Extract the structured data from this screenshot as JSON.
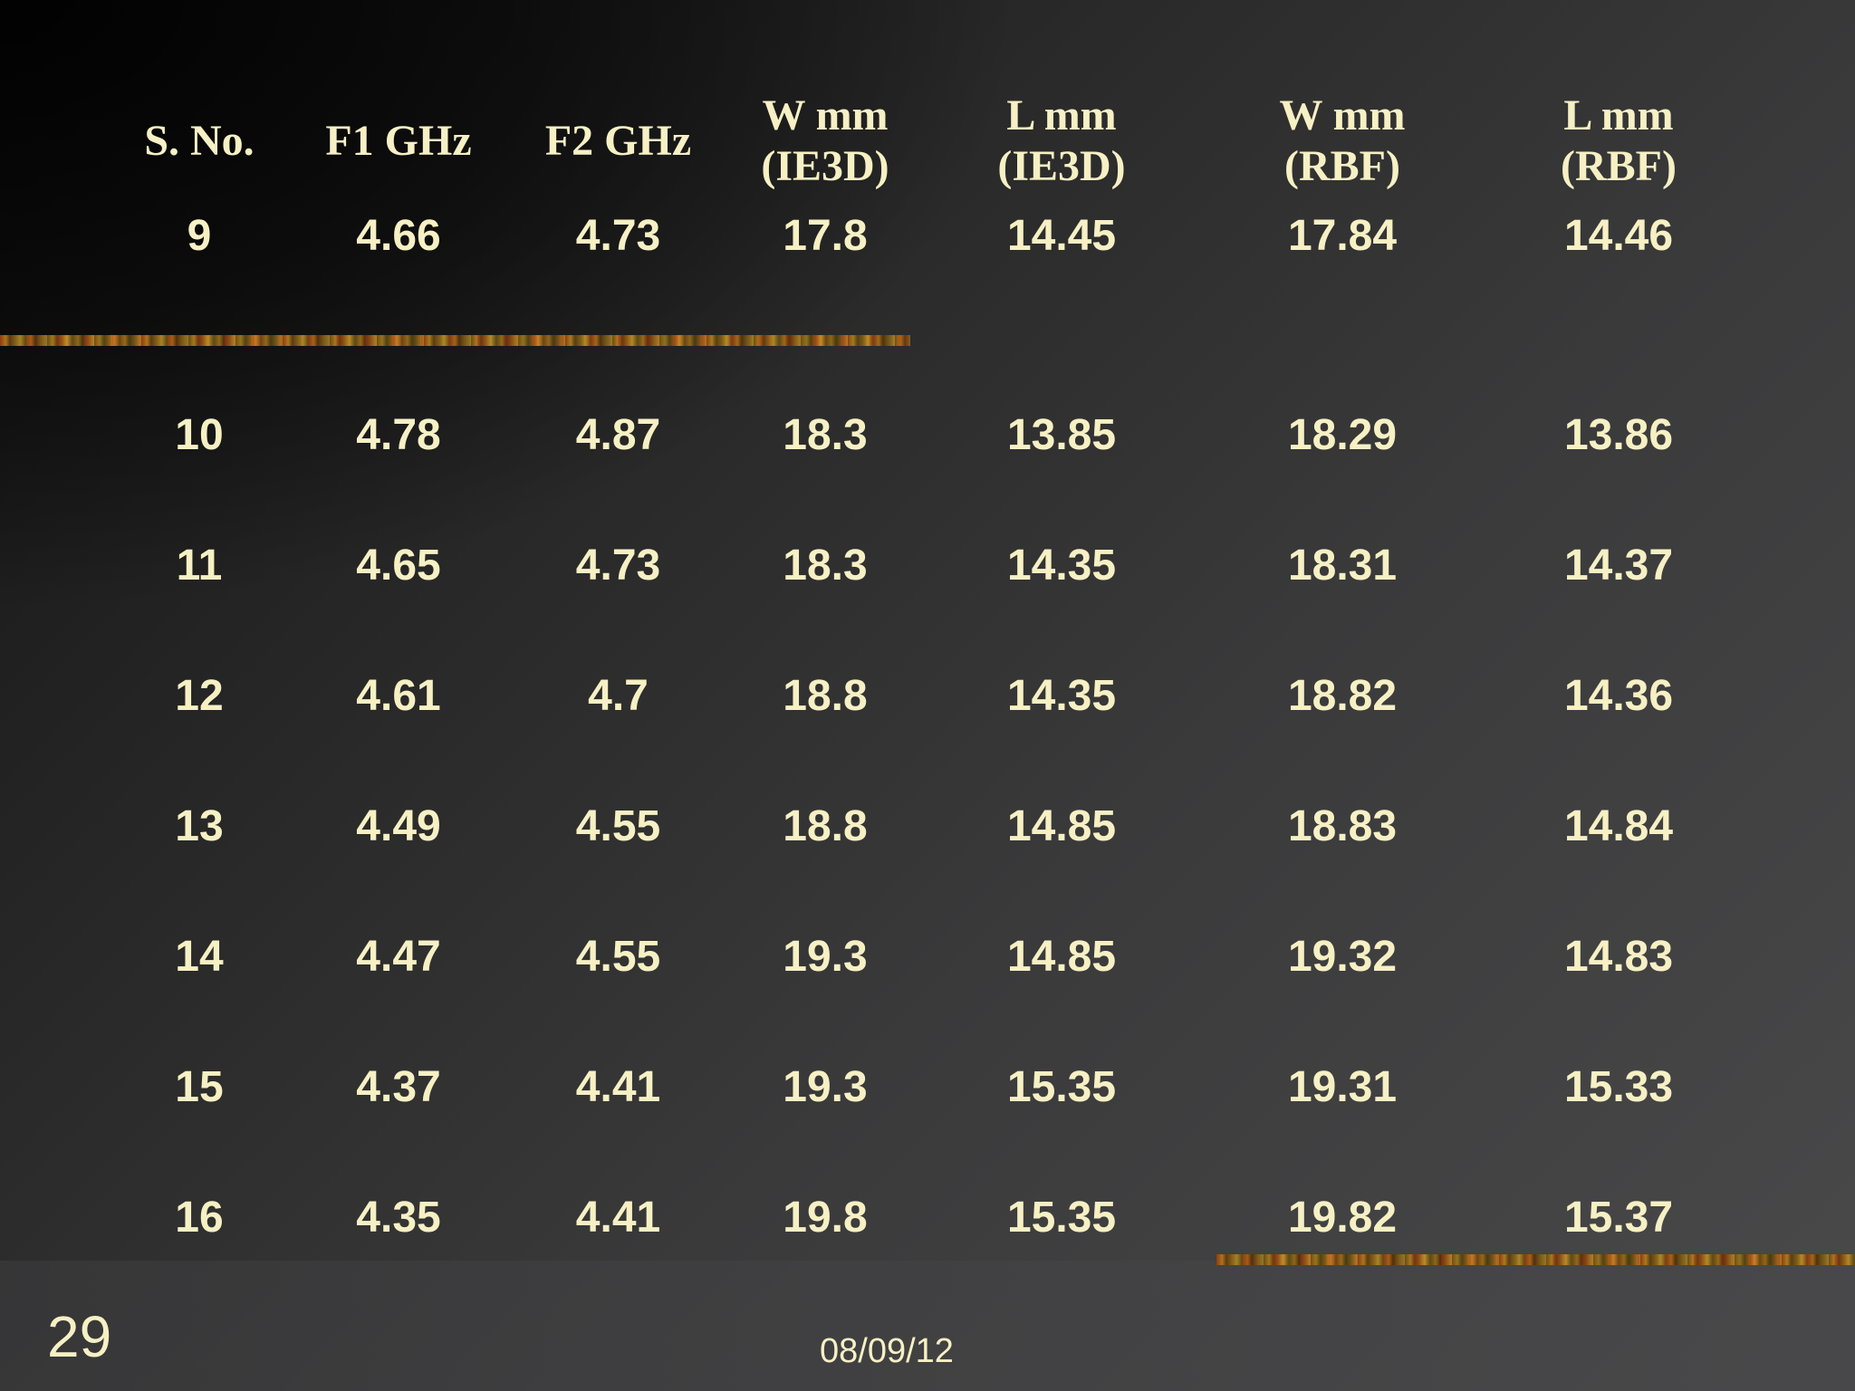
{
  "table": {
    "headers": [
      [
        "S. No."
      ],
      [
        "F1 GHz"
      ],
      [
        "F2 GHz"
      ],
      [
        "W mm",
        "(IE3D)"
      ],
      [
        "L mm",
        "(IE3D)"
      ],
      [
        "W mm",
        "(RBF)"
      ],
      [
        "L mm",
        "(RBF)"
      ]
    ],
    "rows": [
      [
        "9",
        "4.66",
        "4.73",
        "17.8",
        "14.45",
        "17.84",
        "14.46"
      ],
      [
        "10",
        "4.78",
        "4.87",
        "18.3",
        "13.85",
        "18.29",
        "13.86"
      ],
      [
        "11",
        "4.65",
        "4.73",
        "18.3",
        "14.35",
        "18.31",
        "14.37"
      ],
      [
        "12",
        "4.61",
        "4.7",
        "18.8",
        "14.35",
        "18.82",
        "14.36"
      ],
      [
        "13",
        "4.49",
        "4.55",
        "18.8",
        "14.85",
        "18.83",
        "14.84"
      ],
      [
        "14",
        "4.47",
        "4.55",
        "19.3",
        "14.85",
        "19.32",
        "14.83"
      ],
      [
        "15",
        "4.37",
        "4.41",
        "19.3",
        "15.35",
        "19.31",
        "15.33"
      ],
      [
        "16",
        "4.35",
        "4.41",
        "19.8",
        "15.35",
        "19.82",
        "15.37"
      ]
    ]
  },
  "footer": {
    "slide_number": "29",
    "date": "08/09/12"
  },
  "colors": {
    "text": "#f6f0c4",
    "background_dark": "#121212",
    "background_light": "#4a4a4b",
    "stripe_accent": "#b07a1e"
  }
}
